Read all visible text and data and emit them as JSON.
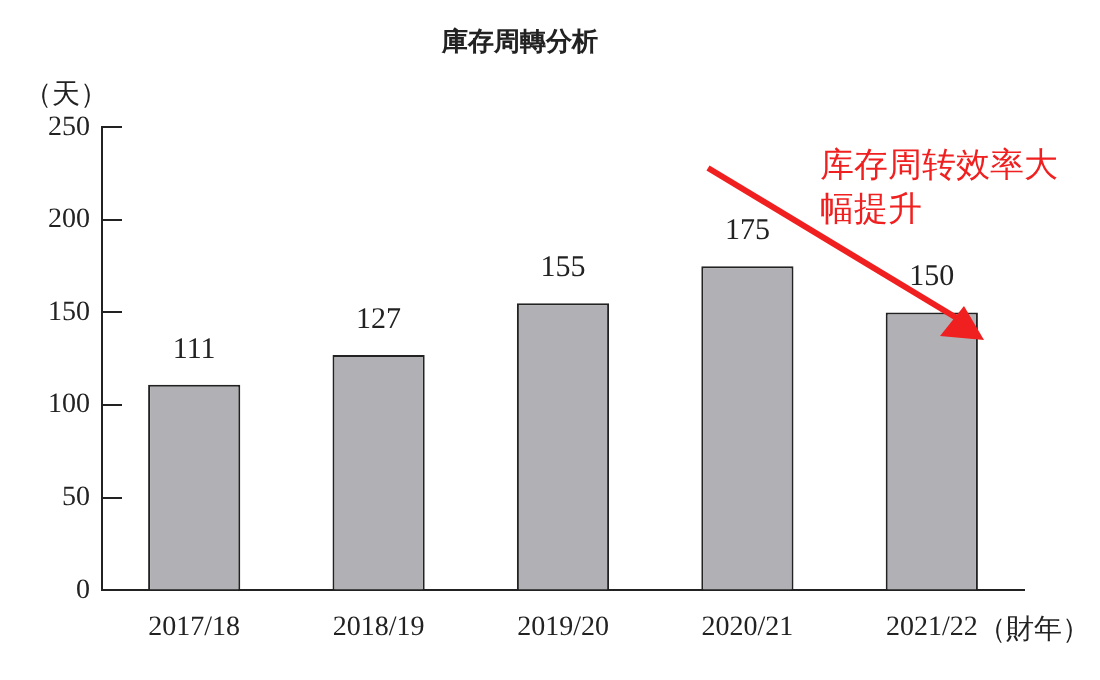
{
  "chart_data": {
    "type": "bar",
    "title": "庫存周轉分析",
    "ylabel": "（天）",
    "xlabel": "（財年）",
    "categories": [
      "2017/18",
      "2018/19",
      "2019/20",
      "2020/21",
      "2021/22"
    ],
    "values": [
      111,
      127,
      155,
      175,
      150
    ],
    "color": "#b1b1b5",
    "ylim": [
      0,
      250
    ],
    "yticks": [
      0,
      50,
      100,
      150,
      200,
      250
    ],
    "grid": false,
    "legend": false,
    "data_labels": true,
    "annotations": [
      "库存周转效率大幅提升"
    ]
  }
}
